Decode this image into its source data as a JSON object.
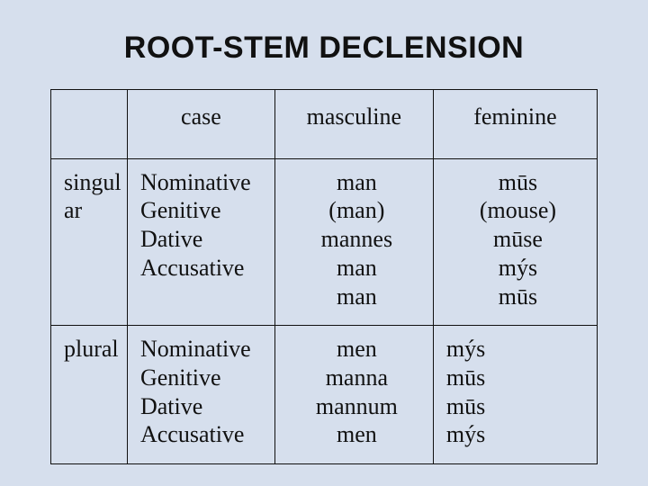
{
  "title": "ROOT-STEM DECLENSION",
  "table": {
    "type": "table",
    "background_color": "#d6dfed",
    "border_color": "#111111",
    "text_color": "#111111",
    "title_font": {
      "family": "Arial",
      "weight": 700,
      "size_pt": 26
    },
    "cell_font": {
      "family": "Times New Roman",
      "weight": 400,
      "size_pt": 20,
      "line_height": 1.22
    },
    "column_widths_pct": [
      14,
      27,
      29,
      30
    ],
    "columns": [
      "",
      "case",
      "masculine",
      "feminine"
    ],
    "rows": [
      {
        "number": "singular",
        "number_display": [
          "singul",
          "ar"
        ],
        "cases": [
          "Nominative",
          "Genitive",
          "Dative",
          "Accusative"
        ],
        "masculine": [
          "man",
          "(man)",
          "mannes",
          "man",
          "man"
        ],
        "feminine": [
          "mūs",
          "(mouse)",
          "mūse",
          "mýs",
          "mūs"
        ],
        "feminine_align": "center"
      },
      {
        "number": "plural",
        "number_display": [
          "plural"
        ],
        "cases": [
          "Nominative",
          "Genitive",
          "Dative",
          "Accusative"
        ],
        "masculine": [
          "men",
          "manna",
          "mannum",
          "men"
        ],
        "feminine": [
          "mýs",
          "mūs",
          "mūs",
          "mýs"
        ],
        "feminine_align": "left"
      }
    ]
  }
}
